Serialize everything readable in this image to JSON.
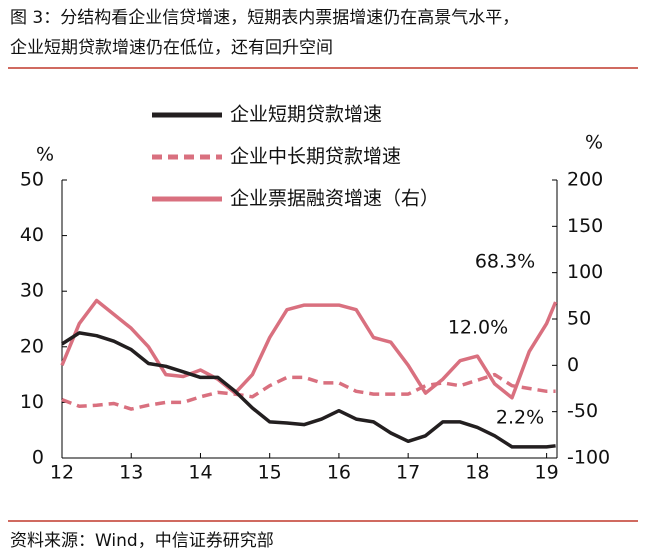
{
  "chart_data": {
    "type": "line",
    "title": [
      "图 3：分结构看企业信贷增速，短期表内票据增速仍在高景气水平，",
      "企业短期贷款增速仍在低位，还有回升空间"
    ],
    "source": "资料来源：Wind，中信证券研究部",
    "y_label": "%",
    "y2_label": "%",
    "x": [
      12,
      12.25,
      12.5,
      12.75,
      13,
      13.25,
      13.5,
      13.75,
      14,
      14.25,
      14.5,
      14.75,
      15,
      15.25,
      15.5,
      15.75,
      16,
      16.25,
      16.5,
      16.75,
      17,
      17.25,
      17.5,
      17.75,
      18,
      18.25,
      18.5,
      18.75,
      19,
      19.13
    ],
    "xlim": [
      12,
      19.15
    ],
    "xticks": [
      12,
      13,
      14,
      15,
      16,
      17,
      18,
      19
    ],
    "ylim": [
      0,
      50
    ],
    "yticks": [
      0,
      10,
      20,
      30,
      40,
      50
    ],
    "y2lim": [
      -100,
      200
    ],
    "y2ticks": [
      -100,
      -50,
      0,
      50,
      100,
      150,
      200
    ],
    "series": [
      {
        "name": "企业短期贷款增速",
        "color": "#231f20",
        "line_style": "solid",
        "values": [
          20.5,
          22.5,
          22,
          21,
          19.5,
          17,
          16.5,
          15.5,
          14.5,
          14.5,
          12,
          9,
          6.5,
          6.3,
          6,
          7,
          8.5,
          7,
          6.5,
          4.5,
          3,
          4,
          6.5,
          6.5,
          5.5,
          4,
          2,
          2,
          2,
          2.2
        ]
      },
      {
        "name": "企业中长期贷款增速",
        "color": "#d9707f",
        "line_style": "dashed",
        "values": [
          10.5,
          9.3,
          9.5,
          9.8,
          8.8,
          9.5,
          10,
          10,
          11,
          11.8,
          11.5,
          11,
          13,
          14.5,
          14.5,
          13.5,
          13.5,
          12,
          11.5,
          11.5,
          11.5,
          13,
          13.5,
          13,
          14,
          15,
          13,
          12.5,
          12,
          12.0
        ]
      },
      {
        "name": "企业票据融资增速（右）",
        "color": "#d9707f",
        "line_style": "solid",
        "axis": "y2",
        "values": [
          0,
          45,
          70,
          55,
          40,
          20,
          -10,
          -12,
          -5,
          -15,
          -30,
          -10,
          30,
          60,
          65,
          65,
          65,
          60,
          30,
          25,
          0,
          -30,
          -15,
          5,
          10,
          -20,
          -35,
          15,
          45,
          68.3
        ]
      }
    ],
    "annotations": [
      "68.3%",
      "12.0%",
      "2.2%"
    ]
  }
}
